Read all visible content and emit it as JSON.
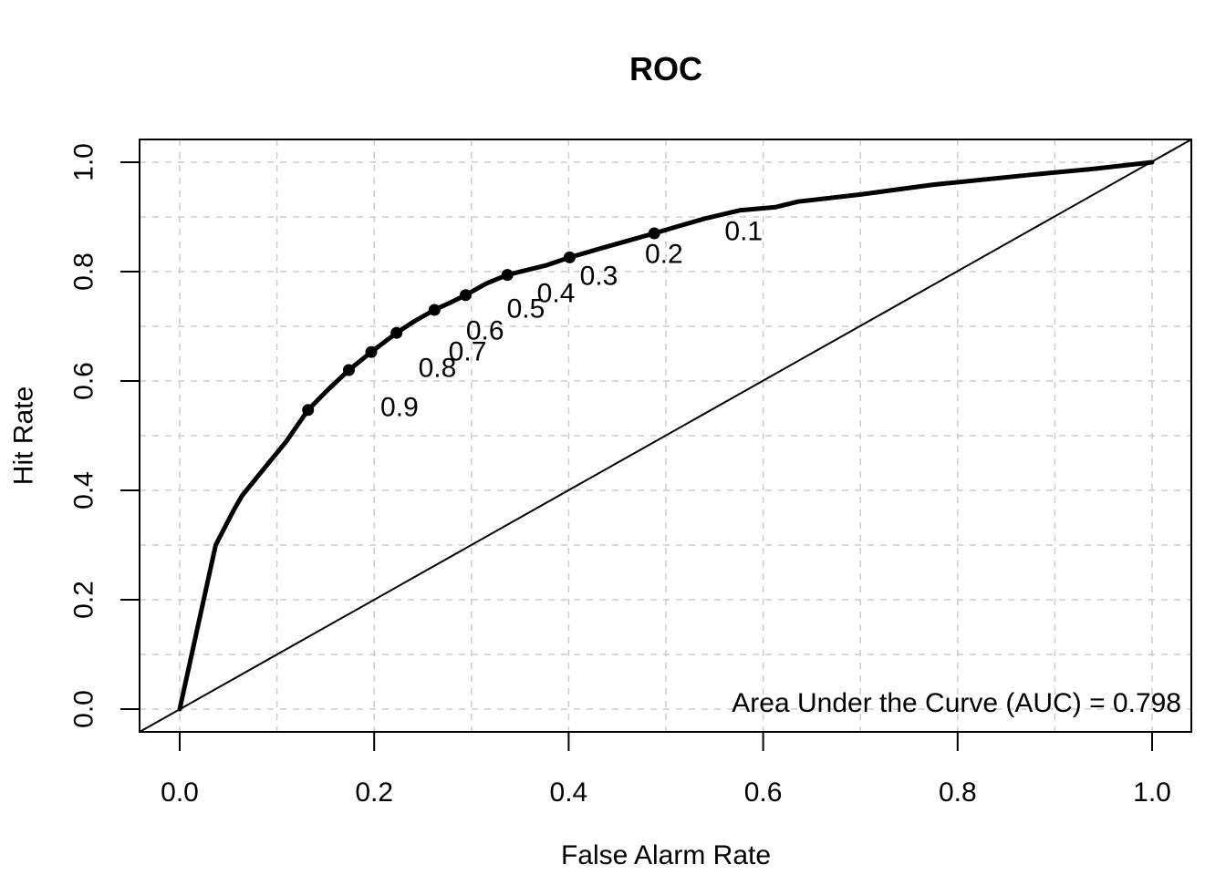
{
  "chart_data": {
    "type": "line",
    "title": "ROC",
    "xlabel": "False Alarm Rate",
    "ylabel": "Hit Rate",
    "xlim": [
      0,
      1
    ],
    "ylim": [
      0,
      1
    ],
    "x_ticks": {
      "values": [
        0.0,
        0.2,
        0.4,
        0.6,
        0.8,
        1.0
      ],
      "labels": [
        "0.0",
        "0.2",
        "0.4",
        "0.6",
        "0.8",
        "1.0"
      ]
    },
    "y_ticks": {
      "values": [
        0.0,
        0.2,
        0.4,
        0.6,
        0.8,
        1.0
      ],
      "labels": [
        "0.0",
        "0.2",
        "0.4",
        "0.6",
        "0.8",
        "1.0"
      ]
    },
    "grid": {
      "visible": true,
      "spacing": 0.1,
      "style": "dashed",
      "color": "#cccccc"
    },
    "series": [
      {
        "name": "roc-curve",
        "type": "line",
        "color": "#000000",
        "line_width": 5,
        "points": [
          [
            0.0,
            0.0
          ],
          [
            0.037,
            0.3
          ],
          [
            0.055,
            0.362
          ],
          [
            0.064,
            0.39
          ],
          [
            0.09,
            0.447
          ],
          [
            0.109,
            0.488
          ],
          [
            0.132,
            0.547
          ],
          [
            0.153,
            0.585
          ],
          [
            0.174,
            0.62
          ],
          [
            0.197,
            0.653
          ],
          [
            0.223,
            0.688
          ],
          [
            0.242,
            0.71
          ],
          [
            0.262,
            0.73
          ],
          [
            0.279,
            0.744
          ],
          [
            0.294,
            0.757
          ],
          [
            0.315,
            0.778
          ],
          [
            0.337,
            0.794
          ],
          [
            0.378,
            0.812
          ],
          [
            0.401,
            0.826
          ],
          [
            0.434,
            0.843
          ],
          [
            0.462,
            0.857
          ],
          [
            0.488,
            0.87
          ],
          [
            0.509,
            0.881
          ],
          [
            0.54,
            0.897
          ],
          [
            0.576,
            0.912
          ],
          [
            0.613,
            0.918
          ],
          [
            0.636,
            0.928
          ],
          [
            0.7,
            0.941
          ],
          [
            0.775,
            0.959
          ],
          [
            0.875,
            0.977
          ],
          [
            0.94,
            0.988
          ],
          [
            1.0,
            1.0
          ]
        ]
      },
      {
        "name": "chance-diagonal",
        "type": "line",
        "color": "#000000",
        "line_width": 2,
        "points": [
          [
            0,
            0
          ],
          [
            1,
            1
          ]
        ]
      }
    ],
    "threshold_points": [
      {
        "label": "0.9",
        "x": 0.132,
        "y": 0.547,
        "label_x": 0.226,
        "label_y": 0.553
      },
      {
        "label": "0.8",
        "x": 0.174,
        "y": 0.62,
        "label_x": 0.265,
        "label_y": 0.625
      },
      {
        "label": "0.7",
        "x": 0.197,
        "y": 0.653,
        "label_x": 0.296,
        "label_y": 0.655
      },
      {
        "label": "0.6",
        "x": 0.223,
        "y": 0.688,
        "label_x": 0.314,
        "label_y": 0.693
      },
      {
        "label": "0.5",
        "x": 0.262,
        "y": 0.73,
        "label_x": 0.356,
        "label_y": 0.733
      },
      {
        "label": "0.4",
        "x": 0.294,
        "y": 0.757,
        "label_x": 0.387,
        "label_y": 0.762
      },
      {
        "label": "0.3",
        "x": 0.337,
        "y": 0.794,
        "label_x": 0.431,
        "label_y": 0.793
      },
      {
        "label": "0.2",
        "x": 0.401,
        "y": 0.826,
        "label_x": 0.498,
        "label_y": 0.833
      },
      {
        "label": "0.1",
        "x": 0.488,
        "y": 0.87,
        "label_x": 0.58,
        "label_y": 0.875
      }
    ],
    "annotation": {
      "text": "Area Under the Curve (AUC) = 0.798",
      "auc": 0.798,
      "position": "bottom-right"
    },
    "legend": null
  }
}
